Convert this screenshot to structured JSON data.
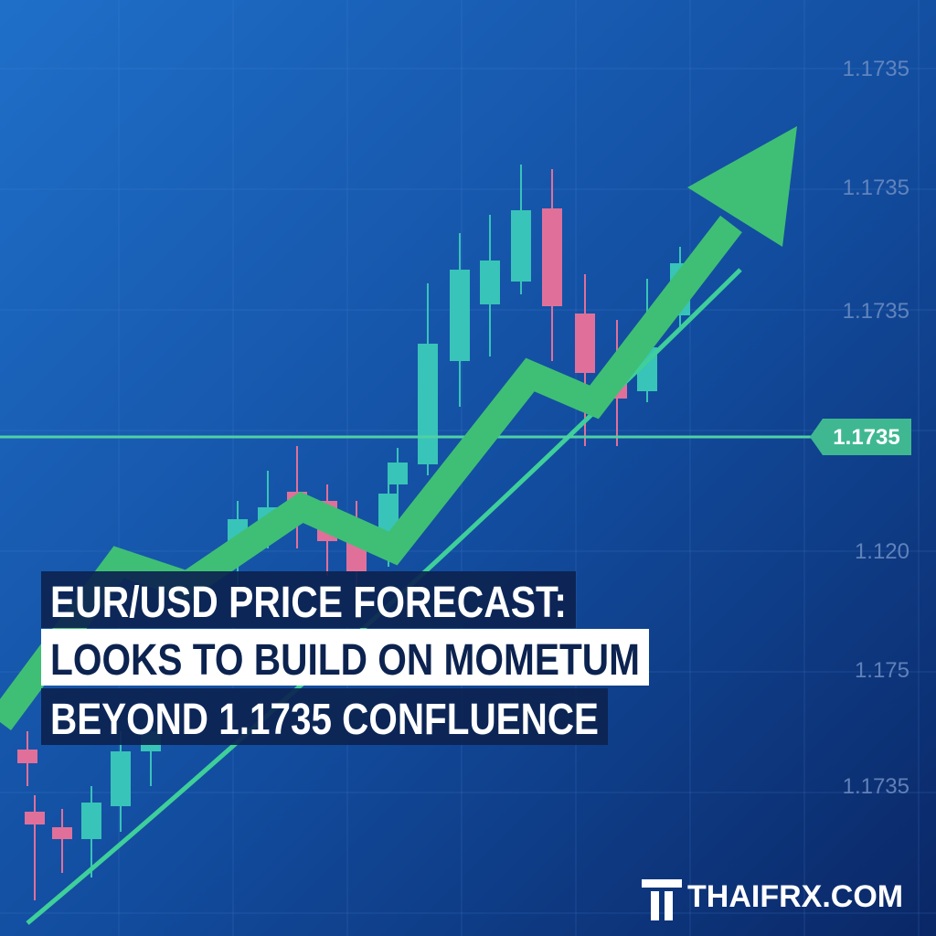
{
  "price_labels": [
    "1.1735",
    "1.1735",
    "1.1735",
    "1.120",
    "1.175",
    "1.1735"
  ],
  "highlighted_price": "1.1735",
  "headline": {
    "lines": [
      "EUR/USD PRICE FORECAST:",
      "LOOKS TO BUILD ON MOMETUM",
      "BEYOND 1.1735 CONFLUENCE"
    ]
  },
  "brand": "THAIFRX.COM"
}
